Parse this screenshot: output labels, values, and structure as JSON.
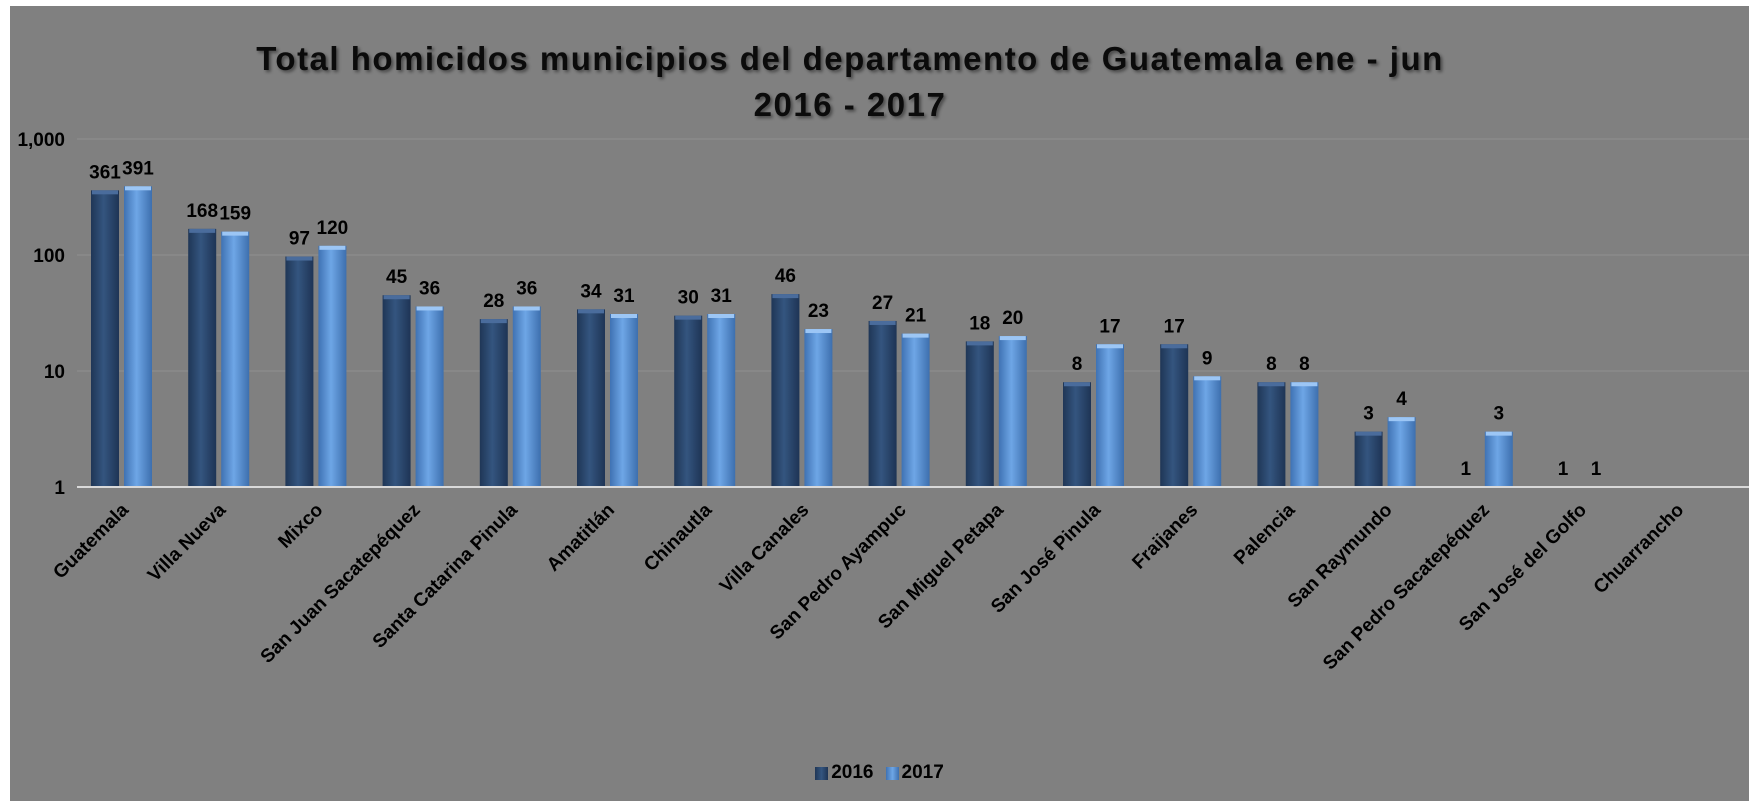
{
  "chart_data": {
    "type": "bar",
    "title": "Total homicidos municipios del departamento de Guatemala ene - jun",
    "subtitle": "2016 - 2017",
    "y_scale": "log",
    "ylim": [
      1,
      1000
    ],
    "yticks": [
      {
        "value": 1,
        "label": "1"
      },
      {
        "value": 10,
        "label": "10"
      },
      {
        "value": 100,
        "label": "100"
      },
      {
        "value": 1000,
        "label": "1,000"
      }
    ],
    "grid": true,
    "legend_position": "bottom",
    "categories": [
      "Guatemala",
      "Villa Nueva",
      "Mixco",
      "San Juan Sacatepéquez",
      "Santa Catarina Pinula",
      "Amatitlán",
      "Chinautla",
      "Villa Canales",
      "San Pedro Ayampuc",
      "San Miguel Petapa",
      "San José Pinula",
      "Fraijanes",
      "Palencia",
      "San Raymundo",
      "San Pedro Sacatepéquez",
      "San José del Golfo",
      "Chuarrancho"
    ],
    "series": [
      {
        "name": "2016",
        "color": "#2a4670",
        "values": [
          361,
          168,
          97,
          45,
          28,
          34,
          30,
          46,
          27,
          18,
          8,
          17,
          8,
          3,
          1,
          1,
          null
        ]
      },
      {
        "name": "2017",
        "color": "#4f86c9",
        "values": [
          391,
          159,
          120,
          36,
          36,
          31,
          31,
          23,
          21,
          20,
          17,
          9,
          8,
          4,
          3,
          1,
          null
        ]
      }
    ]
  }
}
